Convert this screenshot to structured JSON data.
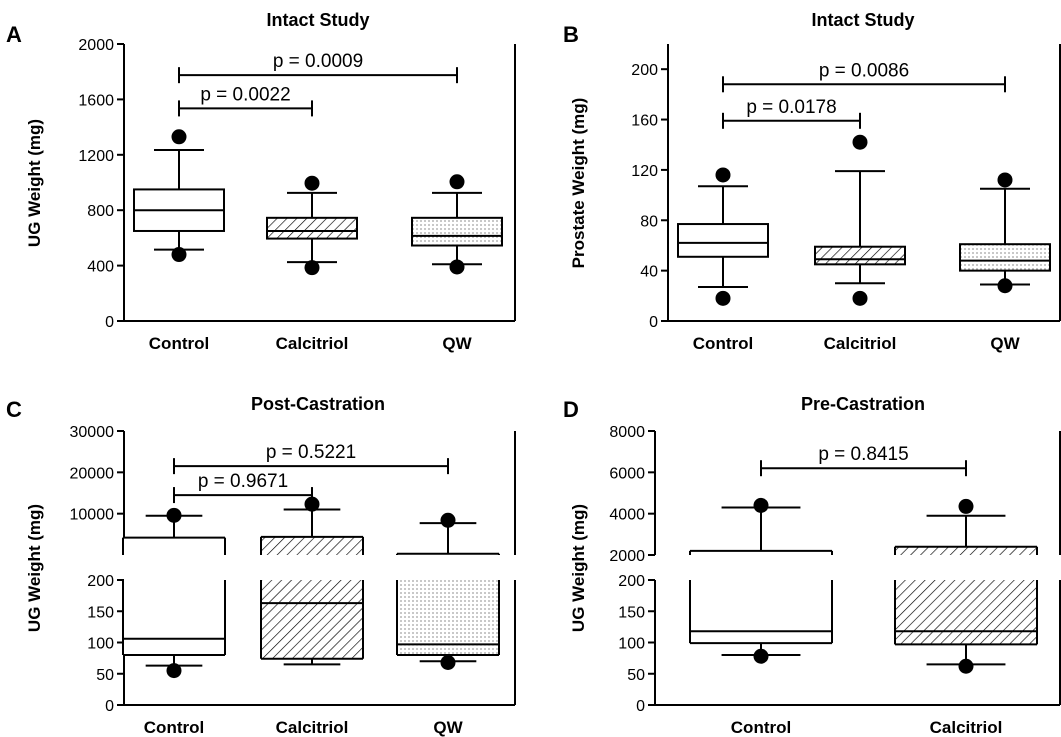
{
  "colors": {
    "line": "#000000",
    "fill": "#ffffff"
  },
  "chart_data": [
    {
      "panel": "A",
      "type": "box",
      "title": "Intact Study",
      "ylabel": "UG Weight (mg)",
      "ylim": [
        0,
        2000
      ],
      "yticks": [
        0,
        400,
        800,
        1200,
        1600,
        2000
      ],
      "categories": [
        "Control",
        "Calcitriol",
        "QW"
      ],
      "boxes": [
        {
          "category": "Control",
          "pattern": "none",
          "whisker_low": 515,
          "q1": 650,
          "median": 800,
          "q3": 950,
          "whisker_high": 1235,
          "outliers": [
            480,
            1330
          ]
        },
        {
          "category": "Calcitriol",
          "pattern": "hatch",
          "whisker_low": 425,
          "q1": 595,
          "median": 650,
          "q3": 745,
          "whisker_high": 925,
          "outliers": [
            385,
            995
          ]
        },
        {
          "category": "QW",
          "pattern": "dots",
          "whisker_low": 410,
          "q1": 545,
          "median": 615,
          "q3": 745,
          "whisker_high": 925,
          "outliers": [
            390,
            1005
          ]
        }
      ],
      "comparisons": [
        {
          "from": "Control",
          "to": "Calcitriol",
          "label": "p = 0.0022",
          "y": 1535
        },
        {
          "from": "Control",
          "to": "QW",
          "label": "p = 0.0009",
          "y": 1775
        }
      ]
    },
    {
      "panel": "B",
      "type": "box",
      "title": "Intact Study",
      "ylabel": "Prostate Weight (mg)",
      "ylim": [
        0,
        220
      ],
      "yticks": [
        0,
        40,
        80,
        120,
        160,
        200
      ],
      "categories": [
        "Control",
        "Calcitriol",
        "QW"
      ],
      "boxes": [
        {
          "category": "Control",
          "pattern": "none",
          "whisker_low": 27,
          "q1": 51,
          "median": 62,
          "q3": 77,
          "whisker_high": 107,
          "outliers": [
            18,
            116
          ]
        },
        {
          "category": "Calcitriol",
          "pattern": "hatch",
          "whisker_low": 30,
          "q1": 45,
          "median": 49,
          "q3": 59,
          "whisker_high": 119,
          "outliers": [
            18,
            142
          ]
        },
        {
          "category": "QW",
          "pattern": "dots",
          "whisker_low": 29,
          "q1": 40,
          "median": 48,
          "q3": 61,
          "whisker_high": 105,
          "outliers": [
            28,
            112
          ]
        }
      ],
      "comparisons": [
        {
          "from": "Control",
          "to": "Calcitriol",
          "label": "p = 0.0178",
          "y": 159
        },
        {
          "from": "Control",
          "to": "QW",
          "label": "p = 0.0086",
          "y": 188
        }
      ]
    },
    {
      "panel": "C",
      "type": "box",
      "title": "Post-Castration",
      "ylabel": "UG Weight (mg)",
      "axis_break": true,
      "segments": [
        {
          "range": [
            0,
            200
          ],
          "ticks": [
            0,
            50,
            100,
            150,
            200
          ],
          "labels": [
            "0",
            "50",
            "100",
            "150",
            "200"
          ]
        },
        {
          "range": [
            0,
            30000
          ],
          "ticks": [
            10000,
            20000,
            30000
          ],
          "labels": [
            "10000",
            "20000",
            "30000"
          ]
        }
      ],
      "categories": [
        "Control",
        "Calcitriol",
        "QW"
      ],
      "boxes": [
        {
          "category": "Control",
          "pattern": "none",
          "whisker_low": 63,
          "q1": 80,
          "median": 106,
          "q3": 4200,
          "whisker_high": 9500,
          "outliers": [
            55,
            9600
          ]
        },
        {
          "category": "Calcitriol",
          "pattern": "hatch",
          "whisker_low": 65,
          "q1": 74,
          "median": 163,
          "q3": 4400,
          "whisker_high": 11000,
          "outliers": [
            12300
          ]
        },
        {
          "category": "QW",
          "pattern": "dots",
          "whisker_low": 70,
          "q1": 80,
          "median": 97,
          "q3": 300,
          "whisker_high": 7700,
          "outliers": [
            68,
            8400
          ]
        }
      ],
      "comparisons": [
        {
          "from": "Control",
          "to": "Calcitriol",
          "label": "p = 0.9671",
          "y": 14500
        },
        {
          "from": "Control",
          "to": "QW",
          "label": "p = 0.5221",
          "y": 21500
        }
      ]
    },
    {
      "panel": "D",
      "type": "box",
      "title": "Pre-Castration",
      "ylabel": "UG Weight (mg)",
      "axis_break": true,
      "segments": [
        {
          "range": [
            0,
            200
          ],
          "ticks": [
            0,
            50,
            100,
            150,
            200
          ],
          "labels": [
            "0",
            "50",
            "100",
            "150",
            "200"
          ]
        },
        {
          "range": [
            2000,
            8000
          ],
          "ticks": [
            2000,
            4000,
            6000,
            8000
          ],
          "labels": [
            "2000",
            "4000",
            "6000",
            "8000"
          ]
        }
      ],
      "categories": [
        "Control",
        "Calcitriol"
      ],
      "boxes": [
        {
          "category": "Control",
          "pattern": "none",
          "whisker_low": 80,
          "q1": 99,
          "median": 118,
          "q3": 2200,
          "whisker_high": 4300,
          "outliers": [
            78,
            4400
          ]
        },
        {
          "category": "Calcitriol",
          "pattern": "hatch",
          "whisker_low": 65,
          "q1": 97,
          "median": 118,
          "q3": 2400,
          "whisker_high": 3900,
          "outliers": [
            62,
            4350
          ]
        }
      ],
      "comparisons": [
        {
          "from": "Control",
          "to": "Calcitriol",
          "label": "p = 0.8415",
          "y": 6200
        }
      ]
    }
  ]
}
